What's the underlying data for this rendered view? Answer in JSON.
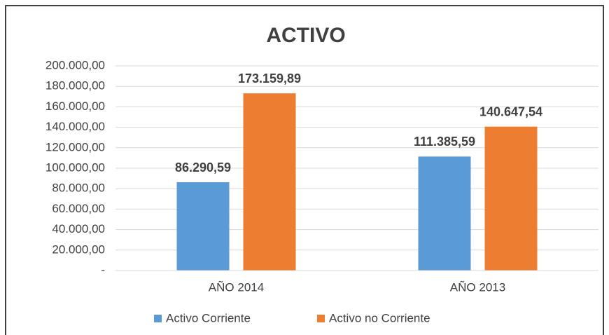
{
  "chart_data": {
    "type": "bar",
    "title": "ACTIVO",
    "categories": [
      "AÑO 2014",
      "AÑO 2013"
    ],
    "series": [
      {
        "name": "Activo Corriente",
        "color": "#5b9bd5",
        "values": [
          86290.59,
          111385.59
        ],
        "value_labels": [
          "86.290,59",
          "111.385,59"
        ]
      },
      {
        "name": "Activo no Corriente",
        "color": "#ed7d31",
        "values": [
          173159.89,
          140647.54
        ],
        "value_labels": [
          "173.159,89",
          "140.647,54"
        ]
      }
    ],
    "ylim": [
      0,
      200000
    ],
    "yticks": [
      {
        "value": 0,
        "label": "-"
      },
      {
        "value": 20000,
        "label": "20.000,00"
      },
      {
        "value": 40000,
        "label": "40.000,00"
      },
      {
        "value": 60000,
        "label": "60.000,00"
      },
      {
        "value": 80000,
        "label": "80.000,00"
      },
      {
        "value": 100000,
        "label": "100.000,00"
      },
      {
        "value": 120000,
        "label": "120.000,00"
      },
      {
        "value": 140000,
        "label": "140.000,00"
      },
      {
        "value": 160000,
        "label": "160.000,00"
      },
      {
        "value": 180000,
        "label": "180.000,00"
      },
      {
        "value": 200000,
        "label": "200.000,00"
      }
    ],
    "grid": true,
    "legend": "bottom"
  }
}
